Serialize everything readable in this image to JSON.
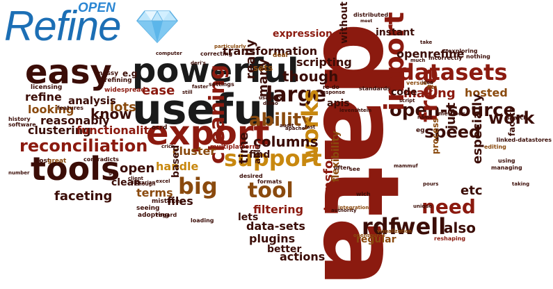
{
  "logo": {
    "main": "Refine",
    "super": "OPEN"
  },
  "colors": {
    "dark": "#3b0d07",
    "red": "#8b1a0f",
    "brown": "#8a4a0e",
    "gold": "#c8880f",
    "black": "#1a1a1a",
    "logo_blue": "#1c6fb5"
  },
  "words": [
    {
      "t": "data",
      "c": "red",
      "r": 90
    },
    {
      "t": "powerful",
      "c": "black"
    },
    {
      "t": "useful",
      "c": "black"
    },
    {
      "t": "export",
      "c": "red"
    },
    {
      "t": "easy",
      "c": "dark"
    },
    {
      "t": "tools",
      "c": "dark"
    },
    {
      "t": "reconciliation",
      "c": "red"
    },
    {
      "t": "support",
      "c": "gold"
    },
    {
      "t": "datasets",
      "c": "red"
    },
    {
      "t": "ability",
      "c": "brown"
    },
    {
      "t": "open-source",
      "c": "dark"
    },
    {
      "t": "large",
      "c": "dark"
    },
    {
      "t": "import",
      "c": "red",
      "r": -90
    },
    {
      "t": "free",
      "c": "red",
      "r": -90
    },
    {
      "t": "cleaning",
      "c": "red",
      "r": -90
    },
    {
      "t": "works",
      "c": "gold",
      "r": -90
    },
    {
      "t": "tool",
      "c": "brown"
    },
    {
      "t": "big",
      "c": "brown"
    },
    {
      "t": "well",
      "c": "dark"
    },
    {
      "t": "rdf",
      "c": "dark"
    },
    {
      "t": "need",
      "c": "red"
    },
    {
      "t": "speed",
      "c": "dark"
    },
    {
      "t": "work",
      "c": "dark"
    },
    {
      "t": "columns",
      "c": "dark"
    },
    {
      "t": "making",
      "c": "red"
    },
    {
      "t": "though",
      "c": "dark"
    },
    {
      "t": "transformation",
      "c": "dark"
    },
    {
      "t": "openrefine",
      "c": "dark"
    },
    {
      "t": "expression",
      "c": "red"
    },
    {
      "t": "instant",
      "c": "dark"
    },
    {
      "t": "scripting",
      "c": "dark"
    },
    {
      "t": "ease",
      "c": "red"
    },
    {
      "t": "refine",
      "c": "dark"
    },
    {
      "t": "looking",
      "c": "brown"
    },
    {
      "t": "know",
      "c": "dark"
    },
    {
      "t": "lots",
      "c": "brown"
    },
    {
      "t": "analysis",
      "c": "dark"
    },
    {
      "t": "reasonably",
      "c": "dark"
    },
    {
      "t": "clustering",
      "c": "dark"
    },
    {
      "t": "functionality",
      "c": "red"
    },
    {
      "t": "faceting",
      "c": "dark"
    },
    {
      "t": "handle",
      "c": "gold"
    },
    {
      "t": "open",
      "c": "dark"
    },
    {
      "t": "cluster",
      "c": "brown"
    },
    {
      "t": "clean",
      "c": "dark"
    },
    {
      "t": "terms",
      "c": "brown"
    },
    {
      "t": "files",
      "c": "dark"
    },
    {
      "t": "filtering",
      "c": "red"
    },
    {
      "t": "data-sets",
      "c": "dark"
    },
    {
      "t": "plugins",
      "c": "dark"
    },
    {
      "t": "better",
      "c": "dark"
    },
    {
      "t": "actions",
      "c": "dark"
    },
    {
      "t": "regular",
      "c": "brown"
    },
    {
      "t": "also",
      "c": "dark"
    },
    {
      "t": "etc",
      "c": "dark"
    },
    {
      "t": "code",
      "c": "dark"
    },
    {
      "t": "hosted",
      "c": "brown"
    },
    {
      "t": "lets",
      "c": "dark"
    },
    {
      "t": "find",
      "c": "dark"
    },
    {
      "t": "time",
      "c": "dark",
      "r": -90
    },
    {
      "t": "really",
      "c": "dark",
      "r": -90
    },
    {
      "t": "many",
      "c": "dark",
      "r": -90
    },
    {
      "t": "apis",
      "c": "dark"
    },
    {
      "t": "transform",
      "c": "red",
      "r": -90
    },
    {
      "t": "flexibility",
      "c": "brown",
      "r": -90
    },
    {
      "t": "especially",
      "c": "dark",
      "r": -90
    },
    {
      "t": "just",
      "c": "dark",
      "r": -90
    },
    {
      "t": "facets",
      "c": "dark",
      "r": -90
    },
    {
      "t": "process",
      "c": "brown",
      "r": -90
    },
    {
      "t": "without",
      "c": "dark",
      "r": -90
    },
    {
      "t": "based",
      "c": "dark",
      "r": -90
    },
    {
      "t": "able",
      "c": "dark",
      "r": -90
    },
    {
      "t": "e.g",
      "c": "dark"
    },
    {
      "t": "sets",
      "c": "brown"
    },
    {
      "t": "deal",
      "c": "brown"
    },
    {
      "t": "distributed",
      "c": "dark"
    },
    {
      "t": "messy",
      "c": "dark"
    },
    {
      "t": "computer",
      "c": "dark"
    },
    {
      "t": "correcting",
      "c": "dark"
    },
    {
      "t": "particularly",
      "c": "brown"
    },
    {
      "t": "deri's",
      "c": "dark"
    },
    {
      "t": "exploring",
      "c": "dark"
    },
    {
      "t": "nothing",
      "c": "dark"
    },
    {
      "t": "take",
      "c": "dark"
    },
    {
      "t": "much",
      "c": "dark"
    },
    {
      "t": "incorrectly",
      "c": "dark"
    },
    {
      "t": "idea",
      "c": "dark"
    },
    {
      "t": "versus",
      "c": "brown"
    },
    {
      "t": "fits",
      "c": "brown"
    },
    {
      "t": "script",
      "c": "dark"
    },
    {
      "t": "standards",
      "c": "dark"
    },
    {
      "t": "re-do",
      "c": "dark"
    },
    {
      "t": "response",
      "c": "dark"
    },
    {
      "t": "levenshtein",
      "c": "dark"
    },
    {
      "t": "audit",
      "c": "dark"
    },
    {
      "t": "apache",
      "c": "dark"
    },
    {
      "t": "fast",
      "c": "dark"
    },
    {
      "t": "demo",
      "c": "dark"
    },
    {
      "t": "usability",
      "c": "dark"
    },
    {
      "t": "settings",
      "c": "dark"
    },
    {
      "t": "faster",
      "c": "dark"
    },
    {
      "t": "still",
      "c": "dark"
    },
    {
      "t": "refining",
      "c": "dark"
    },
    {
      "t": "widespread",
      "c": "red"
    },
    {
      "t": "licensing",
      "c": "dark"
    },
    {
      "t": "features",
      "c": "dark"
    },
    {
      "t": "history",
      "c": "dark"
    },
    {
      "t": "software",
      "c": "dark"
    },
    {
      "t": "ocrd",
      "c": "dark"
    },
    {
      "t": "multiplatform",
      "c": "red"
    },
    {
      "t": "crick",
      "c": "dark"
    },
    {
      "t": "host",
      "c": "dark"
    },
    {
      "t": "great",
      "c": "brown"
    },
    {
      "t": "contradicts",
      "c": "dark"
    },
    {
      "t": "number",
      "c": "dark"
    },
    {
      "t": "get",
      "c": "dark"
    },
    {
      "t": "client",
      "c": "dark"
    },
    {
      "t": "librarian",
      "c": "dark"
    },
    {
      "t": "enough",
      "c": "dark"
    },
    {
      "t": "excel",
      "c": "dark"
    },
    {
      "t": "mistakes",
      "c": "dark"
    },
    {
      "t": "seeing",
      "c": "dark"
    },
    {
      "t": "adopting",
      "c": "dark"
    },
    {
      "t": "regard",
      "c": "dark"
    },
    {
      "t": "loading",
      "c": "dark"
    },
    {
      "t": "desired",
      "c": "dark"
    },
    {
      "t": "formats",
      "c": "dark"
    },
    {
      "t": "often",
      "c": "dark"
    },
    {
      "t": "see",
      "c": "dark"
    },
    {
      "t": "wich",
      "c": "dark"
    },
    {
      "t": "authority",
      "c": "dark"
    },
    {
      "t": "integration",
      "c": "brown"
    },
    {
      "t": "opensource",
      "c": "brown"
    },
    {
      "t": "visualization",
      "c": "brown"
    },
    {
      "t": "mammuf",
      "c": "dark"
    },
    {
      "t": "name",
      "c": "dark"
    },
    {
      "t": "eg",
      "c": "dark"
    },
    {
      "t": "methods",
      "c": "dark"
    },
    {
      "t": "search",
      "c": "dark"
    },
    {
      "t": "editing",
      "c": "brown"
    },
    {
      "t": "managing",
      "c": "dark"
    },
    {
      "t": "using",
      "c": "dark"
    },
    {
      "t": "linked-datastores",
      "c": "dark"
    },
    {
      "t": "taking",
      "c": "dark"
    },
    {
      "t": "unique",
      "c": "dark"
    },
    {
      "t": "pours",
      "c": "dark"
    },
    {
      "t": "reshaping",
      "c": "red"
    },
    {
      "t": "meet",
      "c": "dark"
    }
  ]
}
